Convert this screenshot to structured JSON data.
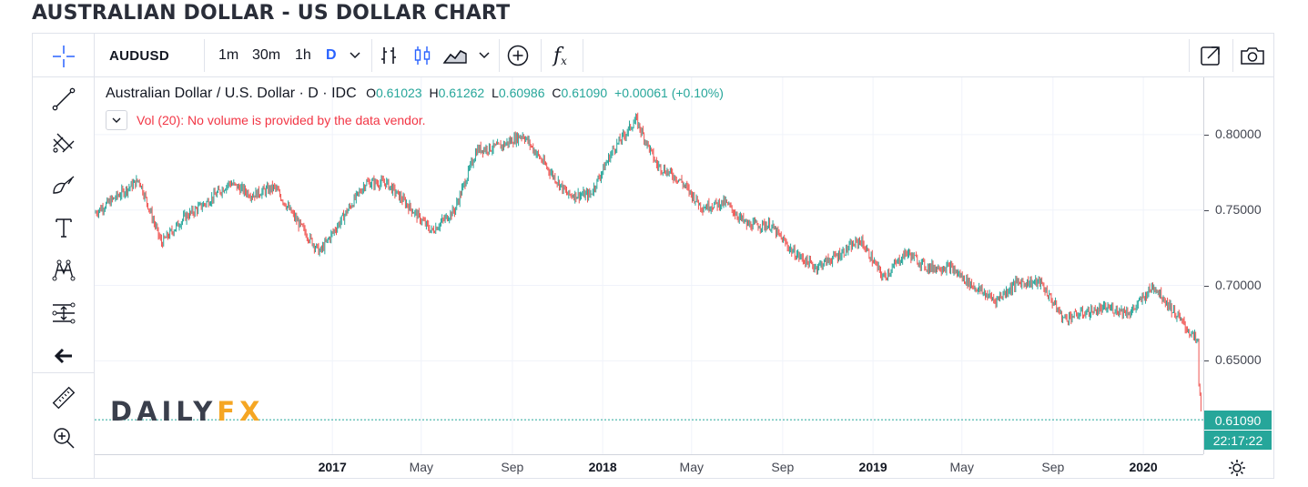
{
  "page_title": "AUSTRALIAN DOLLAR - US DOLLAR CHART",
  "toolbar": {
    "symbol": "AUDUSD",
    "intervals": [
      "1m",
      "30m",
      "1h",
      "D"
    ],
    "active_interval": "D",
    "fx_label": "f",
    "fx_sub": "x"
  },
  "legend": {
    "name": "Australian Dollar / U.S. Dollar · D · IDC",
    "open_label": "O",
    "open": "0.61023",
    "high_label": "H",
    "high": "0.61262",
    "low_label": "L",
    "low": "0.60986",
    "close_label": "C",
    "close": "0.61090",
    "change": "+0.00061 (+0.10%)",
    "volume_note": "Vol (20): No volume is provided by the data vendor."
  },
  "logo": {
    "part1": "DAILY",
    "part2": "FX"
  },
  "colors": {
    "up": "#26a69a",
    "down": "#ef5350",
    "accent": "#2962ff",
    "logo_orange": "#f5a623"
  },
  "chart_data": {
    "type": "line",
    "title": "",
    "symbol": "AUDUSD",
    "timeframe": "D",
    "price_ticks": [
      "0.80000",
      "0.75000",
      "0.70000",
      "0.65000"
    ],
    "time_ticks": [
      "2017",
      "May",
      "Sep",
      "2018",
      "May",
      "Sep",
      "2019",
      "May",
      "Sep",
      "2020"
    ],
    "current_price": "0.61090",
    "countdown": "22:17:22",
    "ylim": [
      0.588,
      0.838
    ],
    "x_range": [
      "2016-02-15",
      "2020-03-22"
    ],
    "series": [
      {
        "values": [
          [
            "2016-04",
            0.77
          ],
          [
            "2016-05",
            0.728
          ],
          [
            "2016-06",
            0.745
          ],
          [
            "2016-07",
            0.755
          ],
          [
            "2016-08",
            0.768
          ],
          [
            "2016-09",
            0.76
          ],
          [
            "2016-10",
            0.765
          ],
          [
            "2016-11",
            0.742
          ],
          [
            "2016-12",
            0.722
          ],
          [
            "2017-01",
            0.745
          ],
          [
            "2017-02",
            0.768
          ],
          [
            "2017-03",
            0.768
          ],
          [
            "2017-04",
            0.752
          ],
          [
            "2017-05",
            0.736
          ],
          [
            "2017-06",
            0.75
          ],
          [
            "2017-07",
            0.79
          ],
          [
            "2017-08",
            0.792
          ],
          [
            "2017-09",
            0.8
          ],
          [
            "2017-10",
            0.78
          ],
          [
            "2017-11",
            0.76
          ],
          [
            "2017-12",
            0.76
          ],
          [
            "2018-01",
            0.79
          ],
          [
            "2018-02",
            0.81
          ],
          [
            "2018-03",
            0.78
          ],
          [
            "2018-04",
            0.77
          ],
          [
            "2018-05",
            0.752
          ],
          [
            "2018-06",
            0.755
          ],
          [
            "2018-07",
            0.74
          ],
          [
            "2018-08",
            0.74
          ],
          [
            "2018-09",
            0.722
          ],
          [
            "2018-10",
            0.712
          ],
          [
            "2018-11",
            0.72
          ],
          [
            "2018-12",
            0.73
          ],
          [
            "2019-01",
            0.705
          ],
          [
            "2019-02",
            0.722
          ],
          [
            "2019-03",
            0.712
          ],
          [
            "2019-04",
            0.712
          ],
          [
            "2019-05",
            0.7
          ],
          [
            "2019-06",
            0.69
          ],
          [
            "2019-07",
            0.702
          ],
          [
            "2019-08",
            0.702
          ],
          [
            "2019-09",
            0.678
          ],
          [
            "2019-10",
            0.682
          ],
          [
            "2019-11",
            0.685
          ],
          [
            "2019-12",
            0.682
          ],
          [
            "2020-01",
            0.7
          ],
          [
            "2020-02",
            0.68
          ],
          [
            "2020-03",
            0.662
          ],
          [
            "2020-03-15",
            0.64
          ],
          [
            "2020-03-20",
            0.611
          ]
        ]
      }
    ]
  }
}
